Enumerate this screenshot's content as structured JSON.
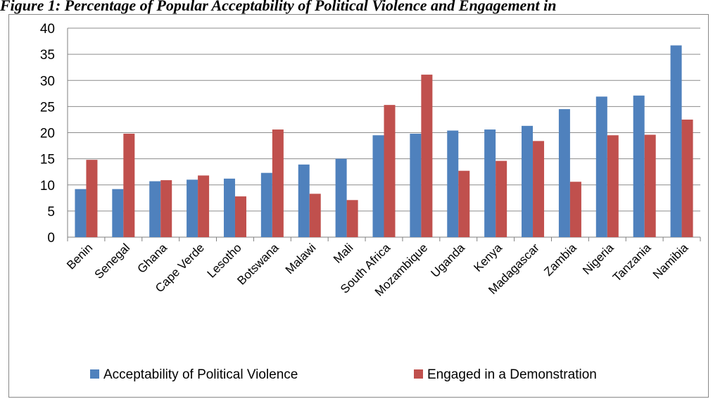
{
  "caption": "Figure 1: Percentage of Popular Acceptability of Political Violence and Engagement in",
  "colors": {
    "series1": "#4F81BD",
    "series2": "#C0504D",
    "grid": "#8C8C8C",
    "axis": "#7F7F7F"
  },
  "chart_data": {
    "type": "bar",
    "categories": [
      "Benin",
      "Senegal",
      "Ghana",
      "Cape Verde",
      "Lesotho",
      "Botswana",
      "Malawi",
      "Mali",
      "South Africa",
      "Mozambique",
      "Uganda",
      "Kenya",
      "Madagascar",
      "Zambia",
      "Nigeria",
      "Tanzania",
      "Namibia"
    ],
    "series": [
      {
        "name": "Acceptability of Political Violence",
        "values": [
          9.2,
          9.2,
          10.7,
          11.0,
          11.2,
          12.3,
          13.9,
          15.0,
          19.5,
          19.8,
          20.4,
          20.6,
          21.3,
          24.5,
          26.9,
          27.1,
          36.7
        ]
      },
      {
        "name": "Engaged in a Demonstration",
        "values": [
          14.8,
          19.8,
          10.9,
          11.8,
          7.8,
          20.6,
          8.3,
          7.1,
          25.3,
          31.1,
          12.7,
          14.6,
          18.4,
          10.6,
          19.5,
          19.6,
          22.5
        ]
      }
    ],
    "ylim": [
      0,
      40
    ],
    "yticks": [
      "0",
      "5",
      "10",
      "15",
      "20",
      "25",
      "30",
      "35",
      "40"
    ],
    "grid": true,
    "legend": "bottom"
  }
}
